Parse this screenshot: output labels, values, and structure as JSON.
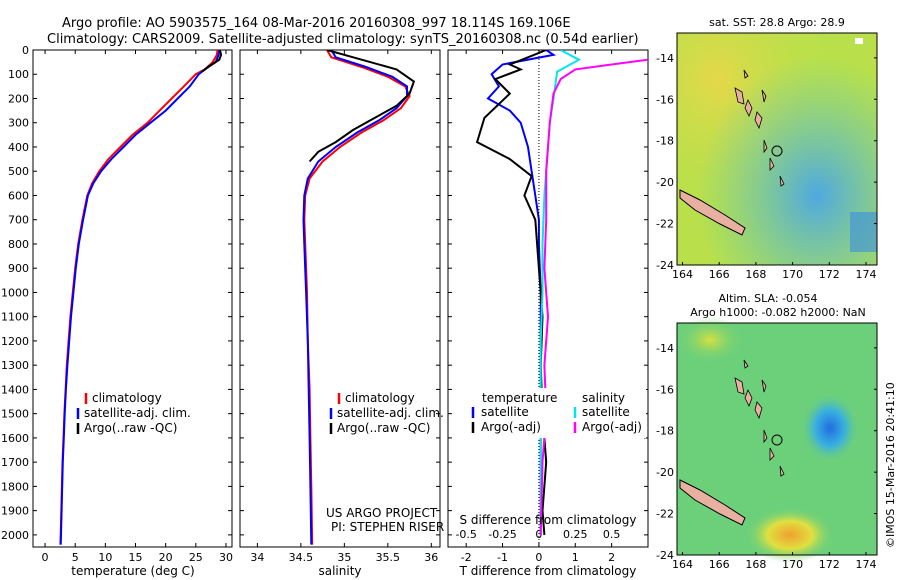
{
  "header": {
    "line1": "Argo profile: AO 5903575_164 08-Mar-2016 20160308_997 18.114S 169.106E",
    "line2": "Climatology: CARS2009. Satellite-adjusted climatology: synTS_20160308.nc (0.54d earlier)"
  },
  "footer": {
    "project": "US ARGO PROJECT",
    "pi": "PI: STEPHEN RISER",
    "stamp": "©IMOS 15-Mar-2016 20:41:10"
  },
  "chart_data": [
    {
      "type": "line",
      "name": "temperature-profile",
      "xlabel": "temperature (deg C)",
      "ylabel": "",
      "xlim": [
        -2,
        31
      ],
      "ylim": [
        2050,
        0
      ],
      "x_ticks": [
        0,
        5,
        10,
        15,
        20,
        25,
        30
      ],
      "y_ticks": [
        0,
        100,
        200,
        300,
        400,
        500,
        600,
        700,
        800,
        900,
        1000,
        1100,
        1200,
        1300,
        1400,
        1500,
        1600,
        1700,
        1800,
        1900,
        2000
      ],
      "legend": [
        "climatology",
        "satellite-adj. clim.",
        "Argo(..raw -QC)"
      ],
      "series": [
        {
          "name": "climatology",
          "color": "#ff0000",
          "points": [
            [
              28.6,
              0
            ],
            [
              28.5,
              20
            ],
            [
              27.8,
              50
            ],
            [
              26.5,
              80
            ],
            [
              25,
              100
            ],
            [
              23,
              150
            ],
            [
              21,
              200
            ],
            [
              19,
              250
            ],
            [
              17,
              300
            ],
            [
              14.5,
              350
            ],
            [
              12.5,
              400
            ],
            [
              10.5,
              450
            ],
            [
              9,
              500
            ],
            [
              7.8,
              550
            ],
            [
              7,
              600
            ],
            [
              6.2,
              700
            ],
            [
              5.5,
              800
            ],
            [
              5,
              900
            ],
            [
              4.6,
              1000
            ],
            [
              4.2,
              1100
            ],
            [
              3.9,
              1200
            ],
            [
              3.6,
              1300
            ],
            [
              3.4,
              1400
            ],
            [
              3.2,
              1500
            ],
            [
              3.05,
              1600
            ],
            [
              2.9,
              1700
            ],
            [
              2.8,
              1800
            ],
            [
              2.7,
              1900
            ],
            [
              2.6,
              2000
            ],
            [
              2.55,
              2040
            ]
          ]
        },
        {
          "name": "satellite-adj. clim.",
          "color": "#0000ff",
          "points": [
            [
              28.9,
              0
            ],
            [
              28.8,
              20
            ],
            [
              28.3,
              50
            ],
            [
              26.5,
              80
            ],
            [
              25.5,
              100
            ],
            [
              24,
              150
            ],
            [
              22,
              200
            ],
            [
              20,
              250
            ],
            [
              17.5,
              300
            ],
            [
              15,
              350
            ],
            [
              13,
              400
            ],
            [
              11,
              450
            ],
            [
              9.3,
              500
            ],
            [
              8,
              550
            ],
            [
              7.1,
              600
            ],
            [
              6.3,
              700
            ],
            [
              5.6,
              800
            ],
            [
              5.1,
              900
            ],
            [
              4.7,
              1000
            ],
            [
              4.3,
              1100
            ],
            [
              4,
              1200
            ],
            [
              3.7,
              1300
            ],
            [
              3.45,
              1400
            ],
            [
              3.25,
              1500
            ],
            [
              3.1,
              1600
            ],
            [
              2.95,
              1700
            ],
            [
              2.85,
              1800
            ],
            [
              2.75,
              1900
            ],
            [
              2.65,
              2000
            ],
            [
              2.6,
              2040
            ]
          ]
        },
        {
          "name": "Argo(..raw -QC)",
          "color": "#000000",
          "points": [
            [
              29,
              0
            ],
            [
              29.2,
              20
            ],
            [
              28.9,
              40
            ],
            [
              27,
              70
            ],
            [
              26,
              90
            ]
          ]
        }
      ]
    },
    {
      "type": "line",
      "name": "salinity-profile",
      "xlabel": "salinity",
      "ylabel": "",
      "xlim": [
        33.8,
        36.1
      ],
      "ylim": [
        2050,
        0
      ],
      "x_ticks": [
        34,
        34.5,
        35,
        35.5,
        36
      ],
      "x_tick_labels": [
        "34",
        "34.5",
        "35",
        "35.5",
        "36"
      ],
      "legend": [
        "climatology",
        "satellite-adj. clim.",
        "Argo(..raw -QC)"
      ],
      "series": [
        {
          "name": "climatology",
          "color": "#ff0000",
          "points": [
            [
              34.8,
              0
            ],
            [
              34.85,
              30
            ],
            [
              35.2,
              70
            ],
            [
              35.5,
              110
            ],
            [
              35.7,
              150
            ],
            [
              35.75,
              190
            ],
            [
              35.65,
              240
            ],
            [
              35.45,
              290
            ],
            [
              35.2,
              340
            ],
            [
              34.95,
              400
            ],
            [
              34.75,
              460
            ],
            [
              34.6,
              530
            ],
            [
              34.55,
              600
            ],
            [
              34.54,
              700
            ],
            [
              34.55,
              800
            ],
            [
              34.56,
              900
            ],
            [
              34.57,
              1000
            ],
            [
              34.58,
              1200
            ],
            [
              34.6,
              1400
            ],
            [
              34.61,
              1600
            ],
            [
              34.62,
              1800
            ],
            [
              34.63,
              2040
            ]
          ]
        },
        {
          "name": "satellite-adj. clim.",
          "color": "#0000ff",
          "points": [
            [
              34.85,
              0
            ],
            [
              34.9,
              30
            ],
            [
              35.25,
              70
            ],
            [
              35.55,
              110
            ],
            [
              35.72,
              150
            ],
            [
              35.72,
              190
            ],
            [
              35.6,
              240
            ],
            [
              35.4,
              290
            ],
            [
              35.15,
              340
            ],
            [
              34.9,
              400
            ],
            [
              34.7,
              460
            ],
            [
              34.58,
              530
            ],
            [
              34.54,
              600
            ],
            [
              34.53,
              700
            ],
            [
              34.54,
              800
            ],
            [
              34.55,
              900
            ],
            [
              34.56,
              1000
            ],
            [
              34.58,
              1200
            ],
            [
              34.59,
              1400
            ],
            [
              34.6,
              1600
            ],
            [
              34.61,
              1800
            ],
            [
              34.62,
              2040
            ]
          ]
        },
        {
          "name": "Argo(..raw -QC)",
          "color": "#000000",
          "points": [
            [
              34.8,
              0
            ],
            [
              35.2,
              40
            ],
            [
              35.6,
              80
            ],
            [
              35.8,
              130
            ],
            [
              35.75,
              180
            ],
            [
              35.6,
              230
            ],
            [
              35.3,
              290
            ],
            [
              35.1,
              330
            ],
            [
              34.9,
              380
            ],
            [
              34.7,
              420
            ],
            [
              34.6,
              460
            ]
          ]
        }
      ]
    },
    {
      "type": "line",
      "name": "difference-profile",
      "xlabel": "T difference from climatology",
      "top_axis_label": "S difference from climatology",
      "xlim": [
        -2.5,
        3
      ],
      "ylim": [
        2050,
        0
      ],
      "x_ticks": [
        -2,
        -1,
        0,
        1,
        2
      ],
      "x_tick_labels": [
        "-2",
        "-1",
        "0",
        "1",
        "2"
      ],
      "s_ticks": [
        -0.5,
        -0.25,
        0,
        0.25,
        0.5
      ],
      "s_tick_labels": [
        "-0.5",
        "-0.25",
        "0",
        "0.25",
        "0.5"
      ],
      "s_scale": 4,
      "legend_left_title": "temperature",
      "legend_right_title": "salinity",
      "legend": [
        "satellite",
        "Argo(-adj)",
        "satellite",
        "Argo(-adj)"
      ],
      "series": [
        {
          "name": "temperature satellite",
          "color": "#0000ff",
          "points": [
            [
              0.2,
              0
            ],
            [
              0.4,
              20
            ],
            [
              -1,
              60
            ],
            [
              -1.3,
              100
            ],
            [
              -1.1,
              150
            ],
            [
              -1.4,
              200
            ],
            [
              -0.8,
              250
            ],
            [
              -0.5,
              300
            ],
            [
              -0.3,
              400
            ],
            [
              -0.2,
              500
            ],
            [
              -0.1,
              600
            ],
            [
              0,
              700
            ],
            [
              0,
              800
            ],
            [
              0.05,
              1000
            ],
            [
              0.05,
              1200
            ],
            [
              0.05,
              1400
            ],
            [
              0.05,
              1600
            ],
            [
              0.05,
              1800
            ],
            [
              0.05,
              2000
            ]
          ]
        },
        {
          "name": "temperature Argo(-adj)",
          "color": "#000000",
          "points": [
            [
              0.2,
              0
            ],
            [
              -0.3,
              30
            ],
            [
              -0.8,
              60
            ],
            [
              -0.5,
              80
            ],
            [
              -1.2,
              120
            ],
            [
              -0.8,
              180
            ],
            [
              -1.5,
              280
            ],
            [
              -1.7,
              380
            ],
            [
              -0.8,
              450
            ],
            [
              -0.2,
              520
            ],
            [
              -0.4,
              600
            ],
            [
              -0.1,
              700
            ],
            [
              0,
              900
            ],
            [
              0.1,
              1100
            ],
            [
              0.05,
              1300
            ],
            [
              0.1,
              1500
            ],
            [
              0.2,
              1700
            ],
            [
              0.1,
              1900
            ],
            [
              0.15,
              2000
            ]
          ]
        },
        {
          "name": "salinity satellite",
          "color": "#00e5ee",
          "points": [
            [
              0.6,
              0
            ],
            [
              1.1,
              40
            ],
            [
              0.5,
              90
            ],
            [
              0.4,
              200
            ],
            [
              0.3,
              300
            ],
            [
              0.25,
              400
            ],
            [
              0.2,
              500
            ],
            [
              0.15,
              600
            ],
            [
              0.1,
              800
            ],
            [
              0.1,
              1000
            ],
            [
              0.05,
              1200
            ],
            [
              0.05,
              1500
            ],
            [
              0.05,
              2000
            ]
          ]
        },
        {
          "name": "salinity Argo(-adj)",
          "color": "#ff00ff",
          "points": [
            [
              3,
              40
            ],
            [
              2,
              60
            ],
            [
              1,
              80
            ],
            [
              0.6,
              120
            ],
            [
              0.4,
              180
            ],
            [
              0.3,
              300
            ],
            [
              0.2,
              500
            ],
            [
              0.2,
              700
            ],
            [
              0.15,
              900
            ],
            [
              0.25,
              1100
            ],
            [
              0.15,
              1300
            ],
            [
              0.2,
              1500
            ],
            [
              0.1,
              1700
            ],
            [
              0.05,
              2000
            ]
          ]
        }
      ]
    },
    {
      "type": "heatmap",
      "name": "sst-map",
      "title": "sat. SST: 28.8 Argo: 28.9",
      "xlim": [
        163.7,
        174.6
      ],
      "ylim": [
        -24,
        -12.8
      ],
      "x_ticks": [
        164,
        166,
        168,
        170,
        172,
        174
      ],
      "y_ticks": [
        -14,
        -16,
        -18,
        -20,
        -22,
        -24
      ],
      "argo_position": [
        169.106,
        -18.114
      ]
    },
    {
      "type": "heatmap",
      "name": "sla-map",
      "title_line1": "Altim. SLA: -0.054",
      "title_line2": "Argo h1000: -0.082 h2000: NaN",
      "xlim": [
        163.7,
        174.6
      ],
      "ylim": [
        -24,
        -12.8
      ],
      "x_ticks": [
        164,
        166,
        168,
        170,
        172,
        174
      ],
      "y_ticks": [
        -14,
        -16,
        -18,
        -20,
        -22,
        -24
      ],
      "argo_position": [
        169.106,
        -18.114
      ]
    }
  ],
  "colors": {
    "climatology": "#ff0000",
    "satellite": "#0000ff",
    "argo": "#000000",
    "salinity_satellite": "#00e5ee",
    "salinity_argo": "#ff00ff",
    "land": "#e8b0a0"
  }
}
